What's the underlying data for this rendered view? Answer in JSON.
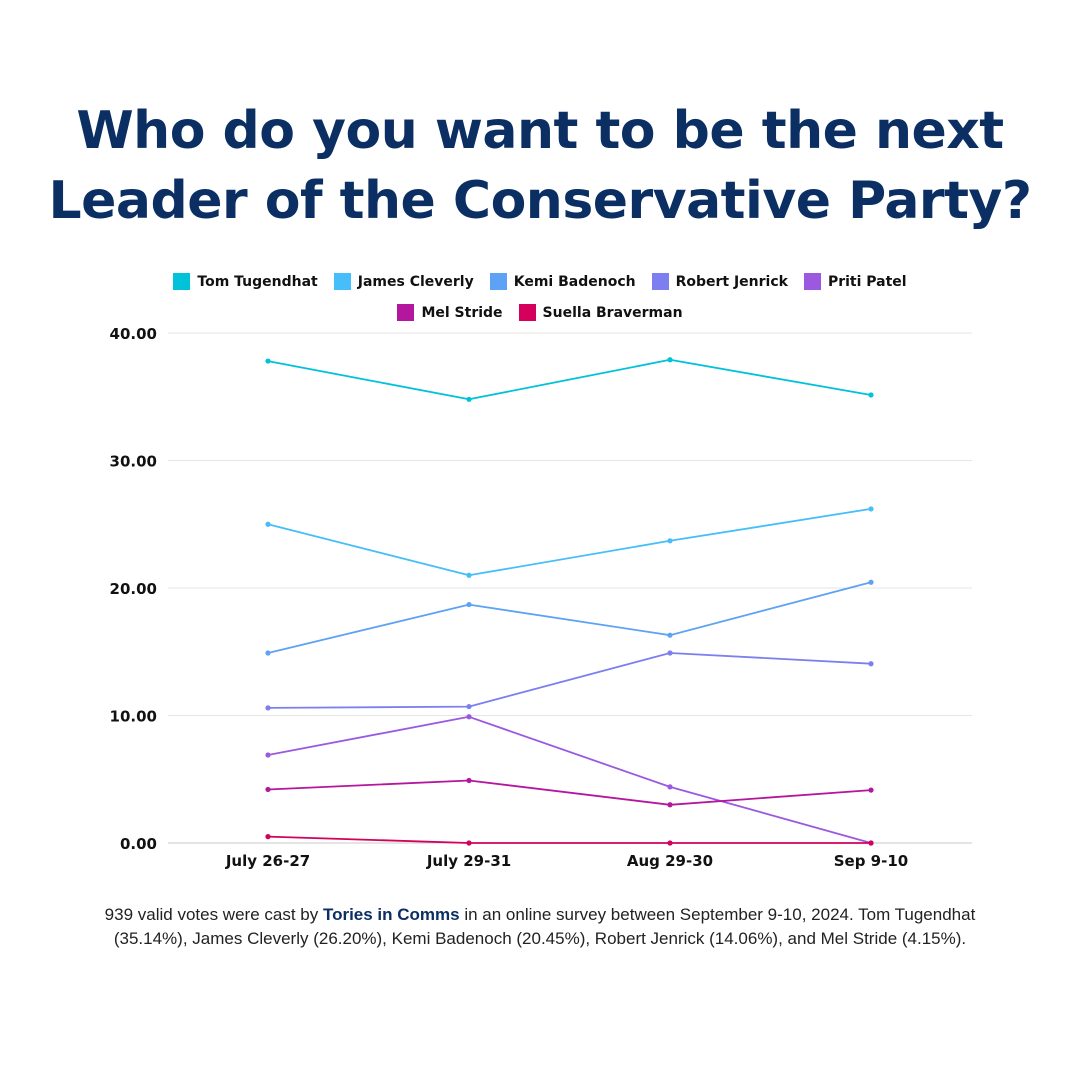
{
  "title": {
    "line1": "Who do you want to be the next",
    "line2": "Leader of the Conservative Party?"
  },
  "caption": {
    "before": "939 valid votes were cast by ",
    "brand": "Tories in Comms",
    "after": " in an online survey between September 9-10, 2024. Tom Tugendhat (35.14%), James Cleverly (26.20%), Kemi Badenoch (20.45%), Robert Jenrick (14.06%), and Mel Stride (4.15%)."
  },
  "chart_data": {
    "type": "line",
    "title": "Who do you want to be the next Leader of the Conservative Party?",
    "xlabel": "",
    "ylabel": "",
    "categories": [
      "July 26-27",
      "July 29-31",
      "Aug 29-30",
      "Sep 9-10"
    ],
    "ylim": [
      0,
      40
    ],
    "yticks": [
      "0.00",
      "10.00",
      "20.00",
      "30.00",
      "40.00"
    ],
    "grid": true,
    "legend_position": "top",
    "series": [
      {
        "name": "Tom Tugendhat",
        "color": "#00c2d8",
        "values": [
          37.8,
          34.8,
          37.9,
          35.14
        ]
      },
      {
        "name": "James Cleverly",
        "color": "#46befa",
        "values": [
          25.0,
          21.0,
          23.7,
          26.2
        ]
      },
      {
        "name": "Kemi Badenoch",
        "color": "#5ea2f5",
        "values": [
          14.9,
          18.7,
          16.3,
          20.45
        ]
      },
      {
        "name": "Robert Jenrick",
        "color": "#7d7ff0",
        "values": [
          10.6,
          10.7,
          14.9,
          14.06
        ]
      },
      {
        "name": "Priti Patel",
        "color": "#9b59e0",
        "values": [
          6.9,
          9.9,
          4.4,
          0
        ]
      },
      {
        "name": "Mel Stride",
        "color": "#b4169e",
        "values": [
          4.2,
          4.9,
          3.0,
          4.15
        ]
      },
      {
        "name": "Suella Braverman",
        "color": "#d4005c",
        "values": [
          0.5,
          0,
          0,
          0
        ]
      }
    ]
  }
}
